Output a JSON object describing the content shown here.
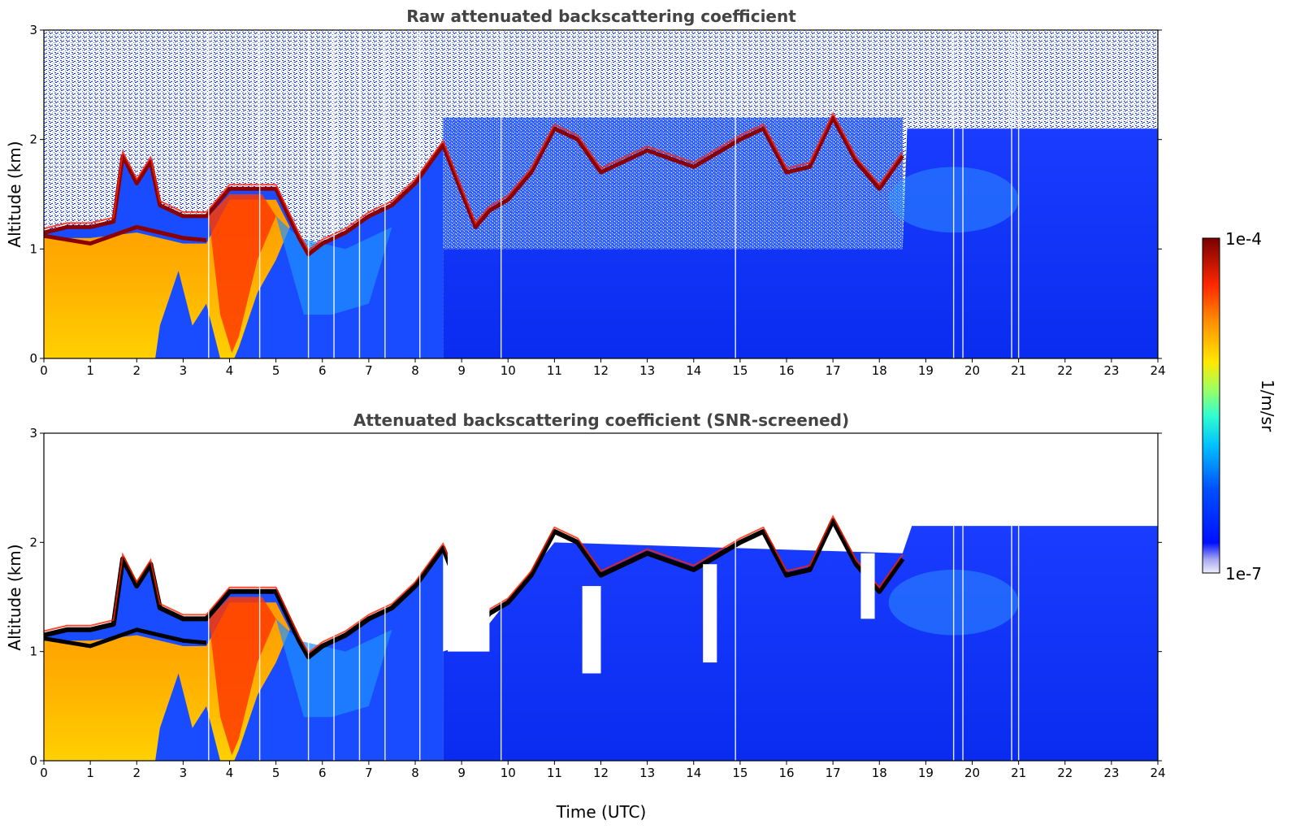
{
  "chart_data": [
    {
      "type": "heatmap",
      "title": "Raw attenuated backscattering coefficient",
      "xlabel": "",
      "ylabel": "Altitude (km)",
      "xlim": [
        0,
        24
      ],
      "ylim": [
        0,
        3
      ],
      "xticks": [
        "0",
        "1",
        "2",
        "3",
        "4",
        "5",
        "6",
        "7",
        "8",
        "9",
        "10",
        "11",
        "12",
        "13",
        "14",
        "15",
        "16",
        "17",
        "18",
        "19",
        "20",
        "21",
        "22",
        "23",
        "24"
      ],
      "yticks": [
        "0",
        "1",
        "2",
        "3"
      ],
      "layer_top_km": {
        "time_h": [
          0,
          0.5,
          1,
          1.5,
          1.7,
          2,
          2.3,
          2.5,
          3,
          3.5,
          4,
          4.5,
          5,
          5.5,
          5.7,
          6,
          6.5,
          7,
          7.5,
          8,
          8.6,
          9.3,
          9.6,
          10,
          10.5,
          11,
          11.5,
          12,
          13,
          14,
          15,
          15.5,
          16,
          16.5,
          17,
          17.5,
          18,
          18.5
        ],
        "altitude_km": [
          1.15,
          1.2,
          1.2,
          1.25,
          1.85,
          1.6,
          1.8,
          1.4,
          1.3,
          1.3,
          1.55,
          1.55,
          1.55,
          1.1,
          0.95,
          1.05,
          1.15,
          1.3,
          1.4,
          1.6,
          1.95,
          1.2,
          1.35,
          1.45,
          1.7,
          2.1,
          2.0,
          1.7,
          1.9,
          1.75,
          2.0,
          2.1,
          1.7,
          1.75,
          2.2,
          1.8,
          1.55,
          1.85
        ]
      },
      "aerosol_top_km_night": 2.1,
      "missing_data_times_h": [
        3.55,
        4.65,
        5.7,
        6.25,
        6.8,
        7.35,
        8.1,
        9.85,
        14.9,
        19.6,
        19.8,
        20.85,
        21.0
      ]
    },
    {
      "type": "heatmap",
      "title": "Attenuated backscattering coefficient (SNR-screened)",
      "xlabel": "Time (UTC)",
      "ylabel": "Altitude (km)",
      "xlim": [
        0,
        24
      ],
      "ylim": [
        0,
        3
      ],
      "xticks": [
        "0",
        "1",
        "2",
        "3",
        "4",
        "5",
        "6",
        "7",
        "8",
        "9",
        "10",
        "11",
        "12",
        "13",
        "14",
        "15",
        "16",
        "17",
        "18",
        "19",
        "20",
        "21",
        "22",
        "23",
        "24"
      ],
      "yticks": [
        "0",
        "1",
        "2",
        "3"
      ],
      "screened_top_km_night": 2.25
    }
  ],
  "colorbar": {
    "label": "1/m/sr",
    "max_label": "1e-4",
    "min_label": "1e-7",
    "vmin": 1e-07,
    "vmax": 0.0001,
    "scale": "log",
    "colors": [
      "#e8e8f8",
      "#b0b0f0",
      "#0010ff",
      "#0060ff",
      "#00c8ff",
      "#40ffc0",
      "#c0ff40",
      "#ffe000",
      "#ff8000",
      "#ff2000",
      "#b00000",
      "#700000"
    ]
  }
}
